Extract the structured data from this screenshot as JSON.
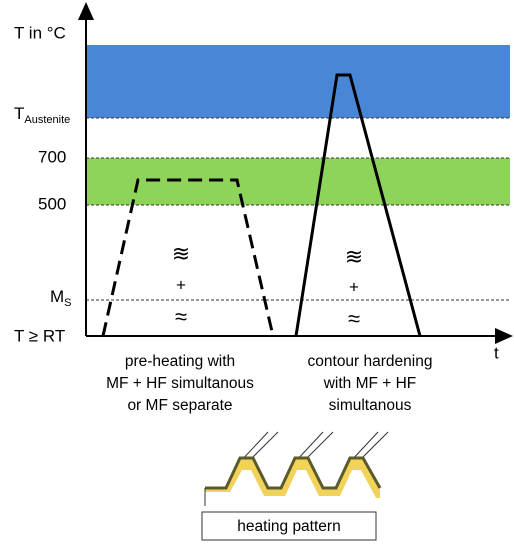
{
  "axis": {
    "y_title": "T in °C",
    "x_title": "t",
    "levels": [
      {
        "label": "T",
        "sub": "Austenite"
      },
      {
        "label": "700"
      },
      {
        "label": "500"
      },
      {
        "label": "M",
        "sub": "S"
      },
      {
        "label": "T ≥ RT"
      }
    ]
  },
  "processes": [
    {
      "lines": [
        "pre-heating with",
        "MF + HF simultanous",
        "or MF separate"
      ],
      "symbols": [
        "≋",
        "+",
        "≈"
      ]
    },
    {
      "lines": [
        "contour hardening",
        "with MF + HF",
        "simultanous"
      ],
      "symbols": [
        "≋",
        "+",
        "≈"
      ]
    }
  ],
  "heating_pattern": "heating pattern"
}
